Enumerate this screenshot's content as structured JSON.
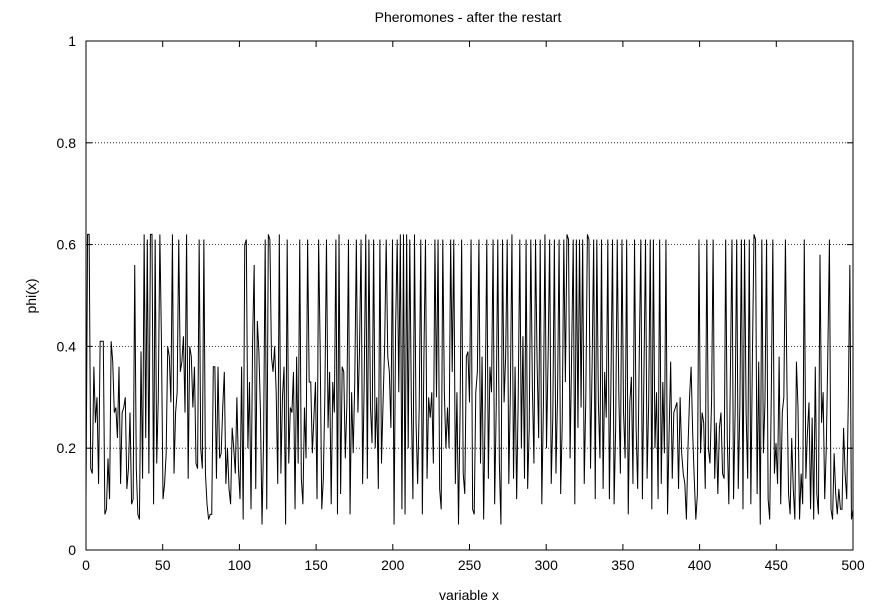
{
  "chart_data": {
    "type": "line",
    "title": "Pheromones - after the restart",
    "xlabel": "variable x",
    "ylabel": "phi(x)",
    "xlim": [
      0,
      500
    ],
    "ylim": [
      0,
      1
    ],
    "xticks": [
      0,
      50,
      100,
      150,
      200,
      250,
      300,
      350,
      400,
      450,
      500
    ],
    "yticks": [
      0,
      0.2,
      0.4,
      0.6,
      0.8,
      1
    ],
    "ytick_labels": [
      "0",
      "0.2",
      "0.4",
      "0.6",
      "0.8",
      "1"
    ],
    "grid": "horizontal-dotted",
    "legend": "none",
    "series": [
      {
        "values": [
          0.1,
          0.62,
          0.62,
          0.16,
          0.15,
          0.36,
          0.25,
          0.3,
          0.13,
          0.41,
          0.41,
          0.41,
          0.07,
          0.08,
          0.18,
          0.1,
          0.41,
          0.37,
          0.27,
          0.28,
          0.22,
          0.36,
          0.13,
          0.27,
          0.28,
          0.3,
          0.12,
          0.16,
          0.27,
          0.09,
          0.1,
          0.56,
          0.16,
          0.07,
          0.06,
          0.39,
          0.14,
          0.62,
          0.22,
          0.61,
          0.15,
          0.62,
          0.62,
          0.09,
          0.61,
          0.17,
          0.3,
          0.62,
          0.41,
          0.1,
          0.13,
          0.19,
          0.4,
          0.38,
          0.29,
          0.62,
          0.15,
          0.27,
          0.31,
          0.61,
          0.35,
          0.37,
          0.42,
          0.27,
          0.62,
          0.14,
          0.4,
          0.38,
          0.28,
          0.36,
          0.17,
          0.16,
          0.61,
          0.2,
          0.16,
          0.61,
          0.15,
          0.09,
          0.06,
          0.07,
          0.07,
          0.36,
          0.36,
          0.14,
          0.36,
          0.18,
          0.19,
          0.28,
          0.35,
          0.13,
          0.2,
          0.12,
          0.09,
          0.24,
          0.2,
          0.15,
          0.3,
          0.16,
          0.1,
          0.36,
          0.06,
          0.6,
          0.61,
          0.2,
          0.33,
          0.08,
          0.41,
          0.56,
          0.12,
          0.45,
          0.39,
          0.27,
          0.05,
          0.22,
          0.61,
          0.08,
          0.62,
          0.61,
          0.38,
          0.35,
          0.4,
          0.31,
          0.13,
          0.62,
          0.15,
          0.3,
          0.36,
          0.05,
          0.61,
          0.17,
          0.28,
          0.27,
          0.35,
          0.08,
          0.38,
          0.17,
          0.61,
          0.14,
          0.09,
          0.28,
          0.18,
          0.61,
          0.33,
          0.33,
          0.19,
          0.26,
          0.33,
          0.1,
          0.61,
          0.39,
          0.08,
          0.14,
          0.31,
          0.61,
          0.24,
          0.35,
          0.09,
          0.33,
          0.27,
          0.61,
          0.07,
          0.62,
          0.11,
          0.36,
          0.35,
          0.18,
          0.29,
          0.61,
          0.07,
          0.31,
          0.19,
          0.33,
          0.61,
          0.27,
          0.39,
          0.61,
          0.13,
          0.33,
          0.62,
          0.14,
          0.61,
          0.28,
          0.21,
          0.61,
          0.2,
          0.3,
          0.12,
          0.61,
          0.17,
          0.29,
          0.4,
          0.61,
          0.38,
          0.35,
          0.24,
          0.61,
          0.05,
          0.44,
          0.61,
          0.31,
          0.62,
          0.08,
          0.62,
          0.07,
          0.62,
          0.2,
          0.61,
          0.29,
          0.1,
          0.62,
          0.25,
          0.13,
          0.28,
          0.61,
          0.07,
          0.38,
          0.61,
          0.14,
          0.3,
          0.26,
          0.31,
          0.17,
          0.61,
          0.3,
          0.61,
          0.12,
          0.08,
          0.61,
          0.31,
          0.2,
          0.28,
          0.2,
          0.61,
          0.35,
          0.61,
          0.13,
          0.31,
          0.05,
          0.27,
          0.61,
          0.15,
          0.11,
          0.38,
          0.39,
          0.29,
          0.61,
          0.08,
          0.07,
          0.31,
          0.35,
          0.61,
          0.17,
          0.38,
          0.06,
          0.29,
          0.61,
          0.14,
          0.36,
          0.31,
          0.61,
          0.09,
          0.28,
          0.61,
          0.17,
          0.05,
          0.61,
          0.29,
          0.38,
          0.61,
          0.13,
          0.31,
          0.62,
          0.14,
          0.36,
          0.1,
          0.3,
          0.61,
          0.2,
          0.42,
          0.14,
          0.61,
          0.12,
          0.24,
          0.61,
          0.32,
          0.17,
          0.61,
          0.37,
          0.22,
          0.61,
          0.09,
          0.28,
          0.62,
          0.2,
          0.38,
          0.61,
          0.13,
          0.26,
          0.61,
          0.15,
          0.3,
          0.61,
          0.11,
          0.25,
          0.61,
          0.33,
          0.62,
          0.61,
          0.18,
          0.39,
          0.61,
          0.09,
          0.61,
          0.24,
          0.61,
          0.28,
          0.61,
          0.13,
          0.3,
          0.62,
          0.61,
          0.16,
          0.36,
          0.61,
          0.1,
          0.61,
          0.29,
          0.18,
          0.61,
          0.12,
          0.35,
          0.26,
          0.61,
          0.1,
          0.33,
          0.61,
          0.09,
          0.24,
          0.61,
          0.31,
          0.15,
          0.61,
          0.27,
          0.18,
          0.61,
          0.07,
          0.29,
          0.34,
          0.13,
          0.61,
          0.24,
          0.12,
          0.38,
          0.61,
          0.1,
          0.35,
          0.61,
          0.14,
          0.29,
          0.61,
          0.08,
          0.61,
          0.2,
          0.31,
          0.1,
          0.61,
          0.13,
          0.33,
          0.19,
          0.61,
          0.07,
          0.23,
          0.37,
          0.14,
          0.27,
          0.28,
          0.29,
          0.12,
          0.3,
          0.19,
          0.15,
          0.13,
          0.06,
          0.2,
          0.3,
          0.36,
          0.23,
          0.14,
          0.06,
          0.11,
          0.61,
          0.19,
          0.27,
          0.25,
          0.12,
          0.61,
          0.2,
          0.17,
          0.29,
          0.61,
          0.14,
          0.25,
          0.11,
          0.24,
          0.27,
          0.15,
          0.14,
          0.61,
          0.22,
          0.09,
          0.35,
          0.61,
          0.1,
          0.27,
          0.61,
          0.12,
          0.28,
          0.61,
          0.08,
          0.61,
          0.27,
          0.14,
          0.61,
          0.09,
          0.38,
          0.62,
          0.61,
          0.11,
          0.37,
          0.05,
          0.61,
          0.19,
          0.29,
          0.61,
          0.1,
          0.06,
          0.3,
          0.61,
          0.15,
          0.21,
          0.13,
          0.38,
          0.09,
          0.27,
          0.3,
          0.61,
          0.32,
          0.11,
          0.07,
          0.22,
          0.12,
          0.06,
          0.37,
          0.28,
          0.06,
          0.15,
          0.09,
          0.61,
          0.14,
          0.23,
          0.29,
          0.08,
          0.26,
          0.06,
          0.36,
          0.11,
          0.07,
          0.58,
          0.25,
          0.31,
          0.1,
          0.2,
          0.39,
          0.61,
          0.08,
          0.06,
          0.19,
          0.11,
          0.07,
          0.12,
          0.08,
          0.08,
          0.24,
          0.15,
          0.1,
          0.29,
          0.56,
          0.06,
          0.08
        ]
      }
    ]
  }
}
